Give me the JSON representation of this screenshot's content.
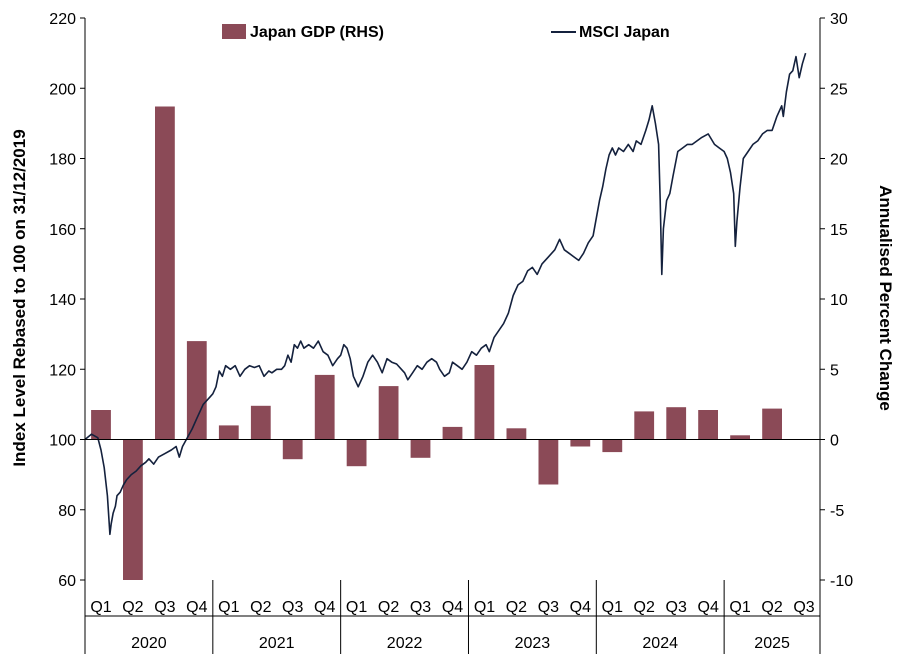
{
  "chart_data": {
    "type": "bar+line",
    "colors": {
      "bar": "#8b4a57",
      "line": "#14213d",
      "axis": "#000000"
    },
    "legend": {
      "placement": "top",
      "entries": [
        {
          "key": "gdp",
          "label": "Japan GDP (RHS)",
          "marker": "bar"
        },
        {
          "key": "msci",
          "label": "MSCI Japan",
          "marker": "line"
        }
      ]
    },
    "y_left": {
      "label": "Index Level Rebased to 100 on 31/12/2019",
      "min": 60,
      "max": 220,
      "ticks": [
        "60",
        "80",
        "100",
        "120",
        "140",
        "160",
        "180",
        "200",
        "220"
      ]
    },
    "y_right": {
      "label": "Annualised Percent Change",
      "min": -10,
      "max": 30,
      "ticks": [
        "-10",
        "-5",
        "0",
        "5",
        "10",
        "15",
        "20",
        "25",
        "30"
      ]
    },
    "categories": [
      "2020 Q1",
      "2020 Q2",
      "2020 Q3",
      "2020 Q4",
      "2021 Q1",
      "2021 Q2",
      "2021 Q3",
      "2021 Q4",
      "2022 Q1",
      "2022 Q2",
      "2022 Q3",
      "2022 Q4",
      "2023 Q1",
      "2023 Q2",
      "2023 Q3",
      "2023 Q4",
      "2024 Q1",
      "2024 Q2",
      "2024 Q3",
      "2024 Q4",
      "2025 Q1",
      "2025 Q2",
      "2025 Q3"
    ],
    "quarter_labels": [
      "Q1",
      "Q2",
      "Q3",
      "Q4",
      "Q1",
      "Q2",
      "Q3",
      "Q4",
      "Q1",
      "Q2",
      "Q3",
      "Q4",
      "Q1",
      "Q2",
      "Q3",
      "Q4",
      "Q1",
      "Q2",
      "Q3",
      "Q4",
      "Q1",
      "Q2",
      "Q3"
    ],
    "years": [
      {
        "label": "2020",
        "quarters": 4
      },
      {
        "label": "2021",
        "quarters": 4
      },
      {
        "label": "2022",
        "quarters": 4
      },
      {
        "label": "2023",
        "quarters": 4
      },
      {
        "label": "2024",
        "quarters": 4
      },
      {
        "label": "2025",
        "quarters": 3
      }
    ],
    "gdp_series": {
      "name": "Japan GDP (RHS)",
      "axis": "right",
      "values": [
        2.1,
        -10.0,
        23.7,
        7.0,
        1.0,
        2.4,
        -1.4,
        4.6,
        -1.9,
        3.8,
        -1.3,
        0.9,
        5.3,
        0.8,
        -3.2,
        -0.5,
        -0.9,
        2.0,
        2.3,
        2.1,
        0.3,
        2.2,
        0.0
      ]
    },
    "msci_series": {
      "name": "MSCI Japan",
      "axis": "left",
      "x_unit": "quarters since start of 2020 Q1",
      "points": [
        [
          0.0,
          100
        ],
        [
          0.2,
          101.5
        ],
        [
          0.4,
          100.5
        ],
        [
          0.5,
          97
        ],
        [
          0.6,
          92
        ],
        [
          0.7,
          84
        ],
        [
          0.75,
          77
        ],
        [
          0.78,
          73
        ],
        [
          0.82,
          76
        ],
        [
          0.88,
          79
        ],
        [
          0.95,
          81
        ],
        [
          1.0,
          84
        ],
        [
          1.1,
          85
        ],
        [
          1.2,
          87
        ],
        [
          1.3,
          88.5
        ],
        [
          1.45,
          90
        ],
        [
          1.6,
          91
        ],
        [
          1.75,
          92.5
        ],
        [
          1.9,
          93.5
        ],
        [
          2.0,
          94.5
        ],
        [
          2.15,
          93
        ],
        [
          2.3,
          95
        ],
        [
          2.5,
          96
        ],
        [
          2.7,
          97
        ],
        [
          2.85,
          98
        ],
        [
          2.95,
          95
        ],
        [
          3.05,
          98
        ],
        [
          3.2,
          100.5
        ],
        [
          3.35,
          103
        ],
        [
          3.5,
          106
        ],
        [
          3.7,
          110
        ],
        [
          3.9,
          112
        ],
        [
          4.0,
          113
        ],
        [
          4.1,
          115
        ],
        [
          4.2,
          119.5
        ],
        [
          4.3,
          118
        ],
        [
          4.4,
          121
        ],
        [
          4.55,
          120
        ],
        [
          4.7,
          121
        ],
        [
          4.85,
          118
        ],
        [
          5.0,
          120
        ],
        [
          5.15,
          121
        ],
        [
          5.3,
          120.5
        ],
        [
          5.45,
          121
        ],
        [
          5.6,
          118
        ],
        [
          5.75,
          119.5
        ],
        [
          5.85,
          119
        ],
        [
          6.0,
          120
        ],
        [
          6.15,
          120
        ],
        [
          6.25,
          121
        ],
        [
          6.35,
          124
        ],
        [
          6.45,
          122
        ],
        [
          6.55,
          127
        ],
        [
          6.65,
          126
        ],
        [
          6.75,
          128
        ],
        [
          6.85,
          126
        ],
        [
          7.0,
          127
        ],
        [
          7.15,
          126
        ],
        [
          7.3,
          128
        ],
        [
          7.45,
          125
        ],
        [
          7.6,
          124
        ],
        [
          7.75,
          121
        ],
        [
          7.9,
          123
        ],
        [
          8.0,
          124
        ],
        [
          8.1,
          127
        ],
        [
          8.2,
          126
        ],
        [
          8.3,
          123
        ],
        [
          8.4,
          118
        ],
        [
          8.55,
          115
        ],
        [
          8.7,
          118
        ],
        [
          8.85,
          122
        ],
        [
          9.0,
          124
        ],
        [
          9.15,
          122
        ],
        [
          9.3,
          119
        ],
        [
          9.45,
          123
        ],
        [
          9.6,
          122
        ],
        [
          9.75,
          121.5
        ],
        [
          9.9,
          120
        ],
        [
          10.0,
          119
        ],
        [
          10.1,
          117
        ],
        [
          10.25,
          119
        ],
        [
          10.4,
          121
        ],
        [
          10.55,
          120
        ],
        [
          10.7,
          122
        ],
        [
          10.85,
          123
        ],
        [
          11.0,
          122
        ],
        [
          11.1,
          120
        ],
        [
          11.25,
          118
        ],
        [
          11.4,
          119
        ],
        [
          11.5,
          122
        ],
        [
          11.65,
          121
        ],
        [
          11.8,
          120
        ],
        [
          11.95,
          122
        ],
        [
          12.0,
          123
        ],
        [
          12.1,
          125
        ],
        [
          12.25,
          124
        ],
        [
          12.4,
          126
        ],
        [
          12.55,
          127
        ],
        [
          12.65,
          125
        ],
        [
          12.8,
          129
        ],
        [
          12.95,
          131
        ],
        [
          13.1,
          133
        ],
        [
          13.25,
          136
        ],
        [
          13.4,
          141
        ],
        [
          13.55,
          144
        ],
        [
          13.7,
          145
        ],
        [
          13.85,
          148
        ],
        [
          14.0,
          149
        ],
        [
          14.15,
          147
        ],
        [
          14.3,
          150
        ],
        [
          14.5,
          152
        ],
        [
          14.7,
          154
        ],
        [
          14.85,
          157
        ],
        [
          15.0,
          154
        ],
        [
          15.15,
          153
        ],
        [
          15.3,
          152
        ],
        [
          15.45,
          151
        ],
        [
          15.6,
          153
        ],
        [
          15.75,
          156
        ],
        [
          15.9,
          158
        ],
        [
          16.0,
          163
        ],
        [
          16.1,
          168
        ],
        [
          16.2,
          172
        ],
        [
          16.3,
          177
        ],
        [
          16.4,
          181
        ],
        [
          16.5,
          183
        ],
        [
          16.6,
          181
        ],
        [
          16.7,
          183
        ],
        [
          16.85,
          182
        ],
        [
          17.0,
          184
        ],
        [
          17.15,
          182
        ],
        [
          17.25,
          185
        ],
        [
          17.4,
          184
        ],
        [
          17.55,
          188
        ],
        [
          17.65,
          191
        ],
        [
          17.75,
          195
        ],
        [
          17.85,
          190
        ],
        [
          17.95,
          184
        ],
        [
          18.0,
          168
        ],
        [
          18.05,
          147
        ],
        [
          18.1,
          160
        ],
        [
          18.2,
          168
        ],
        [
          18.3,
          170
        ],
        [
          18.4,
          175
        ],
        [
          18.55,
          182
        ],
        [
          18.7,
          183
        ],
        [
          18.85,
          184
        ],
        [
          19.0,
          184
        ],
        [
          19.15,
          185
        ],
        [
          19.3,
          186
        ],
        [
          19.5,
          187
        ],
        [
          19.7,
          184
        ],
        [
          19.85,
          183
        ],
        [
          20.0,
          182
        ],
        [
          20.1,
          180
        ],
        [
          20.2,
          176
        ],
        [
          20.3,
          170
        ],
        [
          20.35,
          155
        ],
        [
          20.4,
          162
        ],
        [
          20.5,
          172
        ],
        [
          20.6,
          180
        ],
        [
          20.75,
          182
        ],
        [
          20.9,
          184
        ],
        [
          21.05,
          185
        ],
        [
          21.2,
          187
        ],
        [
          21.35,
          188
        ],
        [
          21.5,
          188
        ],
        [
          21.65,
          192
        ],
        [
          21.8,
          195
        ],
        [
          21.85,
          192
        ],
        [
          21.95,
          199
        ],
        [
          22.05,
          204
        ],
        [
          22.15,
          205
        ],
        [
          22.25,
          209
        ],
        [
          22.35,
          203
        ],
        [
          22.45,
          207
        ],
        [
          22.55,
          210
        ]
      ]
    }
  }
}
